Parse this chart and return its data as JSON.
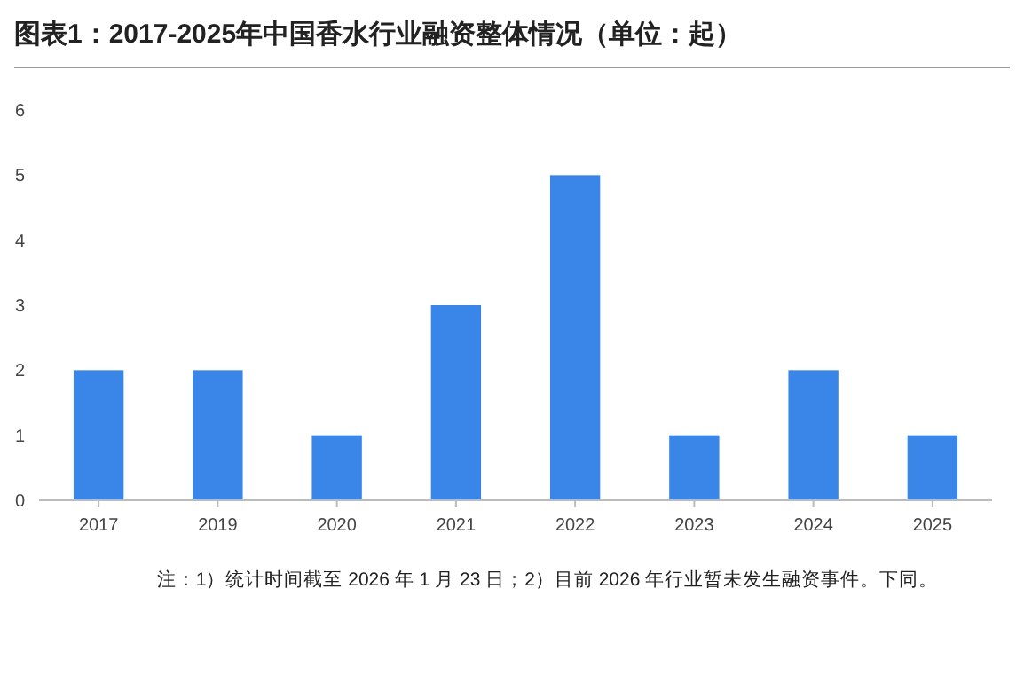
{
  "chart_data": {
    "type": "bar",
    "title": "图表1：2017-2025年中国香水行业融资整体情况（单位：起）",
    "categories": [
      "2017",
      "2019",
      "2020",
      "2021",
      "2022",
      "2023",
      "2024",
      "2025"
    ],
    "values": [
      2,
      2,
      1,
      3,
      5,
      1,
      2,
      1
    ],
    "color": "#3a86e8",
    "ylim": [
      0,
      6
    ],
    "yticks": [
      0,
      1,
      2,
      3,
      4,
      5,
      6
    ],
    "grid": false,
    "annotations": [
      "注：1）统计时间截至 2026 年 1 月 23 日；2）目前 2026 年行业暂未发生融资事件。下同。"
    ]
  }
}
